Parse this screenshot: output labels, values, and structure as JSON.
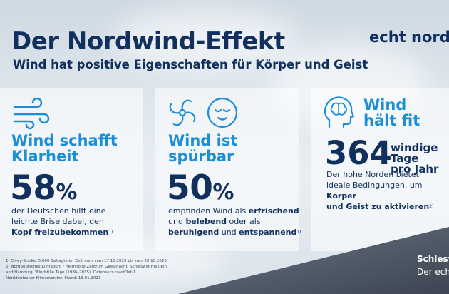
{
  "header": {
    "title": "Der Nordwind-Effekt",
    "subtitle": "Wind hat positive Eigenschaften für Körper und Geist",
    "logo": "echt nordi"
  },
  "panel1": {
    "icon": "wind-lines-icon",
    "heading_line1": "Wind schafft",
    "heading_line2": "Klarheit",
    "stat_value": "58",
    "stat_unit": "%",
    "desc_line1": "der Deutschen hilft eine",
    "desc_line2": "leichte Brise dabei, den",
    "desc_bold": "Kopf freizubekommen",
    "footnote_ref": "1)"
  },
  "panel2": {
    "icons": [
      "fan-icon",
      "calm-face-icon"
    ],
    "heading_line1": "Wind ist",
    "heading_line2": "spürbar",
    "stat_value": "50",
    "stat_unit": "%",
    "desc_a": "empfinden Wind als ",
    "desc_b": "erfrischend",
    "desc_c": "und ",
    "desc_d": "belebend",
    "desc_e": " oder als",
    "desc_f": "beruhigend",
    "desc_g": " und ",
    "desc_h": "entspannend",
    "footnote_ref": "1)"
  },
  "panel3": {
    "icon": "head-brain-icon",
    "heading_line1": "Wind",
    "heading_line2": "hält fit",
    "stat_value": "364",
    "stat_label_line1": "windige Tage",
    "stat_label_line2": "pro Jahr",
    "desc_line1": "Der hohe Norden bietet",
    "desc_line2_a": "ideale Bedingungen, um ",
    "desc_line2_b": "Körper",
    "desc_line3": "und Geist zu aktivieren",
    "footnote_ref": "2)"
  },
  "footnotes": [
    "1) Civey-Studie. 5.000 Befragte im Zeitraum vom 17.10.2025 bis zum 20.10.2025",
    "2) Norddeutsches Klimabüro / Helmholtz-Zentrum Geesthacht: Schleswig-Holstein",
    "and Hamburg: Windstille Tage (1986–2015), Datensatz coastDat-1.",
    "Norddeutscher Klimamonitor. Stand: 16.01.2023"
  ],
  "corner": {
    "line1": "Schleswig-",
    "line2": "Der echte"
  },
  "colors": {
    "navy": "#12305e",
    "accent": "#1a8fd8",
    "dark_band": "#4b5563"
  }
}
